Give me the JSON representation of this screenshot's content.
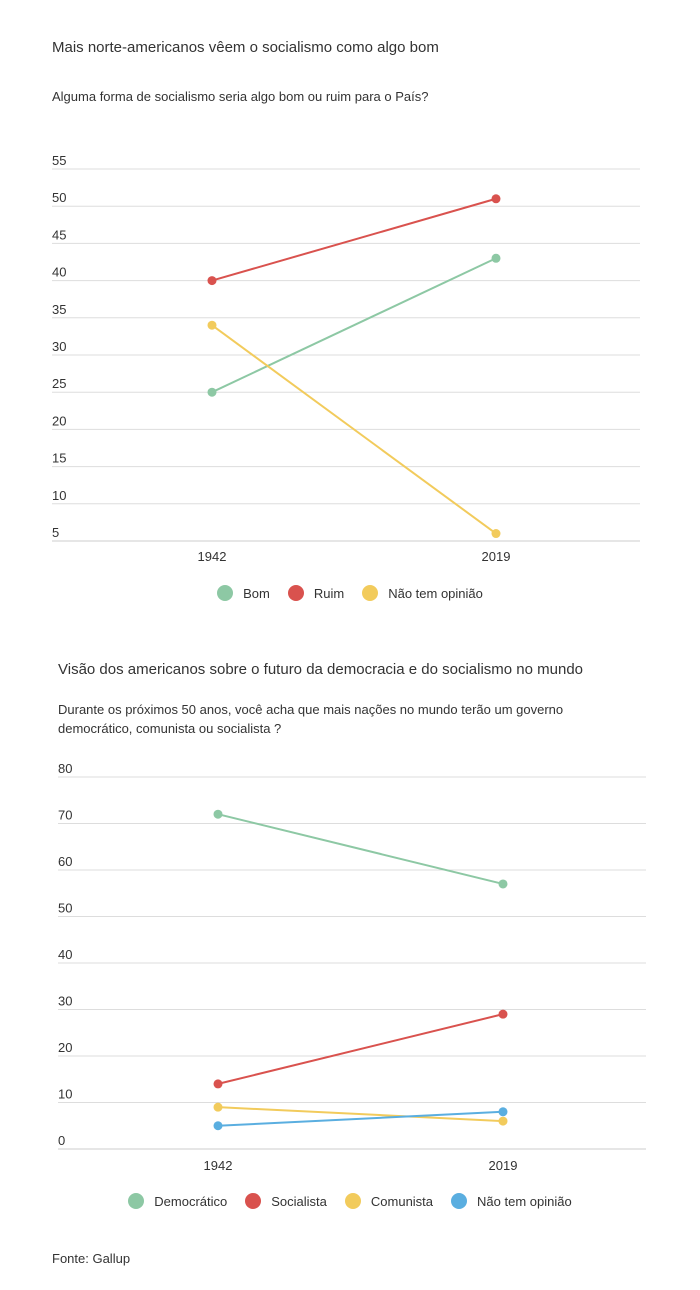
{
  "chart_data": [
    {
      "type": "line",
      "title": "Mais norte-americanos vêem o socialismo como algo bom",
      "subtitle": "Alguma forma de socialismo seria algo bom ou ruim para o País?",
      "x": [
        "1942",
        "2019"
      ],
      "ylim": [
        5,
        55
      ],
      "yticks": [
        "55",
        "50",
        "45",
        "40",
        "35",
        "30",
        "25",
        "20",
        "15",
        "10",
        "5"
      ],
      "grid": true,
      "legend_position": "bottom",
      "series": [
        {
          "name": "Bom",
          "color": "#8dc8a4",
          "values": [
            25,
            43
          ]
        },
        {
          "name": "Ruim",
          "color": "#d9524e",
          "values": [
            40,
            51
          ]
        },
        {
          "name": "Não tem opinião",
          "color": "#f2cb5c",
          "values": [
            34,
            6
          ]
        }
      ]
    },
    {
      "type": "line",
      "title": "Visão dos americanos sobre o futuro da democracia e do socialismo no mundo",
      "subtitle_lines": [
        "Durante os próximos 50 anos, você acha que mais nações no mundo terão um governo",
        "democrático, comunista ou socialista ?"
      ],
      "x": [
        "1942",
        "2019"
      ],
      "ylim": [
        0,
        80
      ],
      "yticks": [
        "80",
        "70",
        "60",
        "50",
        "40",
        "30",
        "20",
        "10",
        "0"
      ],
      "grid": true,
      "legend_position": "bottom",
      "series": [
        {
          "name": "Democrático",
          "color": "#8dc8a4",
          "values": [
            72,
            57
          ]
        },
        {
          "name": "Socialista",
          "color": "#d9524e",
          "values": [
            14,
            29
          ]
        },
        {
          "name": "Comunista",
          "color": "#f2cb5c",
          "values": [
            9,
            6
          ]
        },
        {
          "name": "Não tem opinião",
          "color": "#5aaee0",
          "values": [
            5,
            8
          ]
        }
      ]
    }
  ],
  "source": "Fonte: Gallup"
}
